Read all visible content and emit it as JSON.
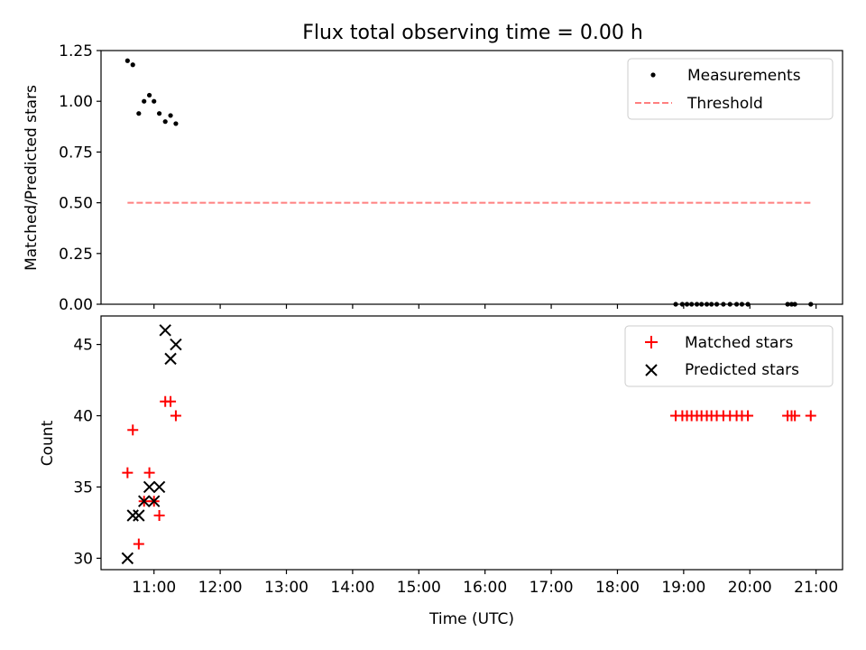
{
  "title": "Flux total observing time = 0.00 h",
  "colors": {
    "measurement": "#000000",
    "threshold": "#ff7f7f",
    "matched": "#ff0000",
    "predicted": "#000000"
  },
  "chart_data": [
    {
      "type": "scatter",
      "ylabel": "Matched/Predicted stars",
      "xlim": [
        10.2,
        21.4
      ],
      "ylim": [
        0,
        1.25
      ],
      "yticks": [
        0.0,
        0.25,
        0.5,
        0.75,
        1.0,
        1.25
      ],
      "ytick_labels": [
        "0.00",
        "0.25",
        "0.50",
        "0.75",
        "1.00",
        "1.25"
      ],
      "legend": {
        "position": "top-right",
        "entries": [
          {
            "key": "measurements",
            "label": "Measurements",
            "marker": "dot"
          },
          {
            "key": "threshold",
            "label": "Threshold",
            "marker": "dashed-line"
          }
        ]
      },
      "series": [
        {
          "name": "Measurements",
          "marker": "dot",
          "x": [
            10.6,
            10.68,
            10.77,
            10.85,
            10.93,
            11.0,
            11.08,
            11.17,
            11.25,
            11.33,
            18.88,
            18.98,
            19.05,
            19.12,
            19.2,
            19.27,
            19.35,
            19.42,
            19.5,
            19.6,
            19.7,
            19.8,
            19.88,
            19.97,
            20.57,
            20.63,
            20.68,
            20.92
          ],
          "y": [
            1.2,
            1.18,
            0.94,
            1.0,
            1.03,
            1.0,
            0.94,
            0.9,
            0.93,
            0.89,
            0,
            0,
            0,
            0,
            0,
            0,
            0,
            0,
            0,
            0,
            0,
            0,
            0,
            0,
            0,
            0,
            0,
            0
          ]
        },
        {
          "name": "Threshold",
          "line_style": "dashed",
          "x": [
            10.6,
            20.92
          ],
          "y": [
            0.5,
            0.5
          ]
        }
      ]
    },
    {
      "type": "scatter",
      "xlabel": "Time (UTC)",
      "ylabel": "Count",
      "xlim": [
        10.2,
        21.4
      ],
      "ylim": [
        29.2,
        47.0
      ],
      "xticks": [
        11,
        12,
        13,
        14,
        15,
        16,
        17,
        18,
        19,
        20,
        21
      ],
      "xtick_labels": [
        "11:00",
        "12:00",
        "13:00",
        "14:00",
        "15:00",
        "16:00",
        "17:00",
        "18:00",
        "19:00",
        "20:00",
        "21:00"
      ],
      "yticks": [
        30,
        35,
        40,
        45
      ],
      "ytick_labels": [
        "30",
        "35",
        "40",
        "45"
      ],
      "legend": {
        "position": "top-right",
        "entries": [
          {
            "key": "matched",
            "label": "Matched stars",
            "marker": "plus"
          },
          {
            "key": "predicted",
            "label": "Predicted stars",
            "marker": "x"
          }
        ]
      },
      "series": [
        {
          "name": "Matched stars",
          "marker": "plus",
          "x": [
            10.6,
            10.68,
            10.77,
            10.85,
            10.93,
            11.0,
            11.08,
            11.17,
            11.25,
            11.33,
            18.88,
            18.98,
            19.05,
            19.12,
            19.2,
            19.27,
            19.35,
            19.42,
            19.5,
            19.6,
            19.7,
            19.8,
            19.88,
            19.97,
            20.57,
            20.63,
            20.68,
            20.92
          ],
          "y": [
            36,
            39,
            31,
            34,
            36,
            34,
            33,
            41,
            41,
            40,
            40,
            40,
            40,
            40,
            40,
            40,
            40,
            40,
            40,
            40,
            40,
            40,
            40,
            40,
            40,
            40,
            40,
            40
          ]
        },
        {
          "name": "Predicted stars",
          "marker": "x",
          "x": [
            10.6,
            10.68,
            10.77,
            10.85,
            10.93,
            11.0,
            11.08,
            11.17,
            11.25,
            11.33
          ],
          "y": [
            30,
            33,
            33,
            34,
            35,
            34,
            35,
            46,
            44,
            45
          ]
        }
      ]
    }
  ]
}
